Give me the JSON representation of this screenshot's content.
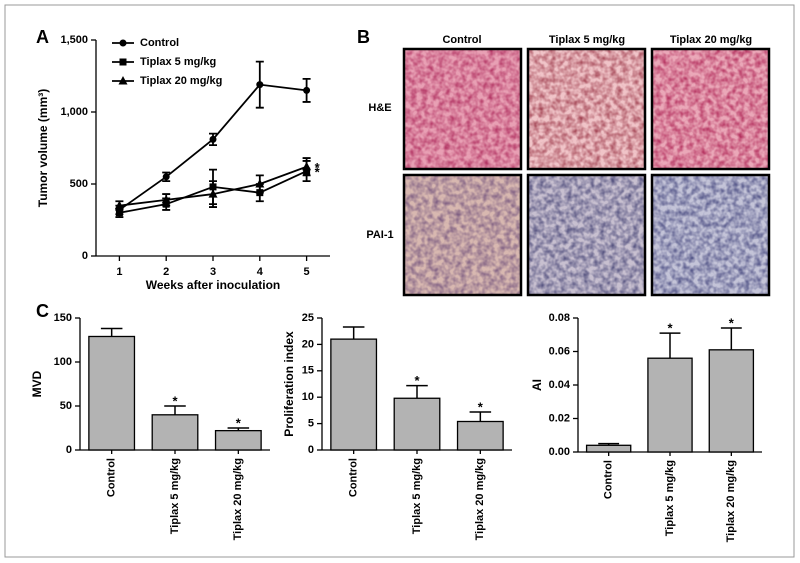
{
  "panel_labels": [
    "A",
    "B",
    "C"
  ],
  "micrographs": {
    "columns": [
      "Control",
      "Tiplax 5 mg/kg",
      "Tiplax 20 mg/kg"
    ],
    "rows": [
      "H&E",
      "PAI-1"
    ]
  },
  "chart_data": [
    {
      "type": "line",
      "x_label": "Weeks after inoculation",
      "y_label": "Tumor volume (mm³)",
      "x": [
        1,
        2,
        3,
        4,
        5
      ],
      "xlim": [
        0.5,
        5.5
      ],
      "xticks": [
        1,
        2,
        3,
        4,
        5
      ],
      "ylim": [
        0,
        1500
      ],
      "yticks": [
        0,
        500,
        {
          "value": 1000,
          "label": "1,000"
        },
        {
          "value": 1500,
          "label": "1,500"
        }
      ],
      "legend": "upper left",
      "series": [
        {
          "name": "Control",
          "color": "#000000",
          "marker": "circle",
          "values": [
            320,
            550,
            810,
            1190,
            1150
          ],
          "errors": [
            30,
            30,
            40,
            160,
            80
          ],
          "significance": [
            null,
            null,
            null,
            null,
            null
          ]
        },
        {
          "name": "Tiplax 5 mg/kg",
          "color": "#000000",
          "marker": "square",
          "values": [
            300,
            360,
            480,
            440,
            590
          ],
          "errors": [
            30,
            40,
            120,
            60,
            70
          ],
          "significance": [
            null,
            null,
            null,
            null,
            "*"
          ]
        },
        {
          "name": "Tiplax 20 mg/kg",
          "color": "#000000",
          "marker": "triangle",
          "values": [
            350,
            390,
            430,
            500,
            620
          ],
          "errors": [
            30,
            40,
            90,
            60,
            60
          ],
          "significance": [
            null,
            null,
            null,
            null,
            "*"
          ]
        }
      ]
    },
    {
      "type": "bar",
      "y_label": "MVD",
      "categories": [
        "Control",
        "Tiplax 5 mg/kg",
        "Tiplax 20 mg/kg"
      ],
      "values": [
        129,
        40,
        22
      ],
      "errors": [
        9,
        10,
        3
      ],
      "significance": [
        null,
        "*",
        "*"
      ],
      "color": "#b3b3b3",
      "ylim": [
        0,
        150
      ],
      "yticks": [
        0,
        50,
        100,
        150
      ]
    },
    {
      "type": "bar",
      "y_label": "Proliferation index",
      "categories": [
        "Control",
        "Tiplax 5 mg/kg",
        "Tiplax 20 mg/kg"
      ],
      "values": [
        21,
        9.8,
        5.4
      ],
      "errors": [
        2.3,
        2.4,
        1.8
      ],
      "significance": [
        null,
        "*",
        "*"
      ],
      "color": "#b3b3b3",
      "ylim": [
        0,
        25
      ],
      "yticks": [
        0,
        5,
        10,
        15,
        20,
        25
      ]
    },
    {
      "type": "bar",
      "y_label": "AI",
      "categories": [
        "Control",
        "Tiplax 5 mg/kg",
        "Tiplax 20 mg/kg"
      ],
      "values": [
        0.004,
        0.056,
        0.061
      ],
      "errors": [
        0.001,
        0.015,
        0.013
      ],
      "significance": [
        null,
        "*",
        "*"
      ],
      "color": "#b3b3b3",
      "ylim": [
        0,
        0.08
      ],
      "yticks": [
        {
          "value": 0,
          "label": "0.00"
        },
        0.02,
        0.04,
        0.06,
        0.08
      ]
    }
  ]
}
